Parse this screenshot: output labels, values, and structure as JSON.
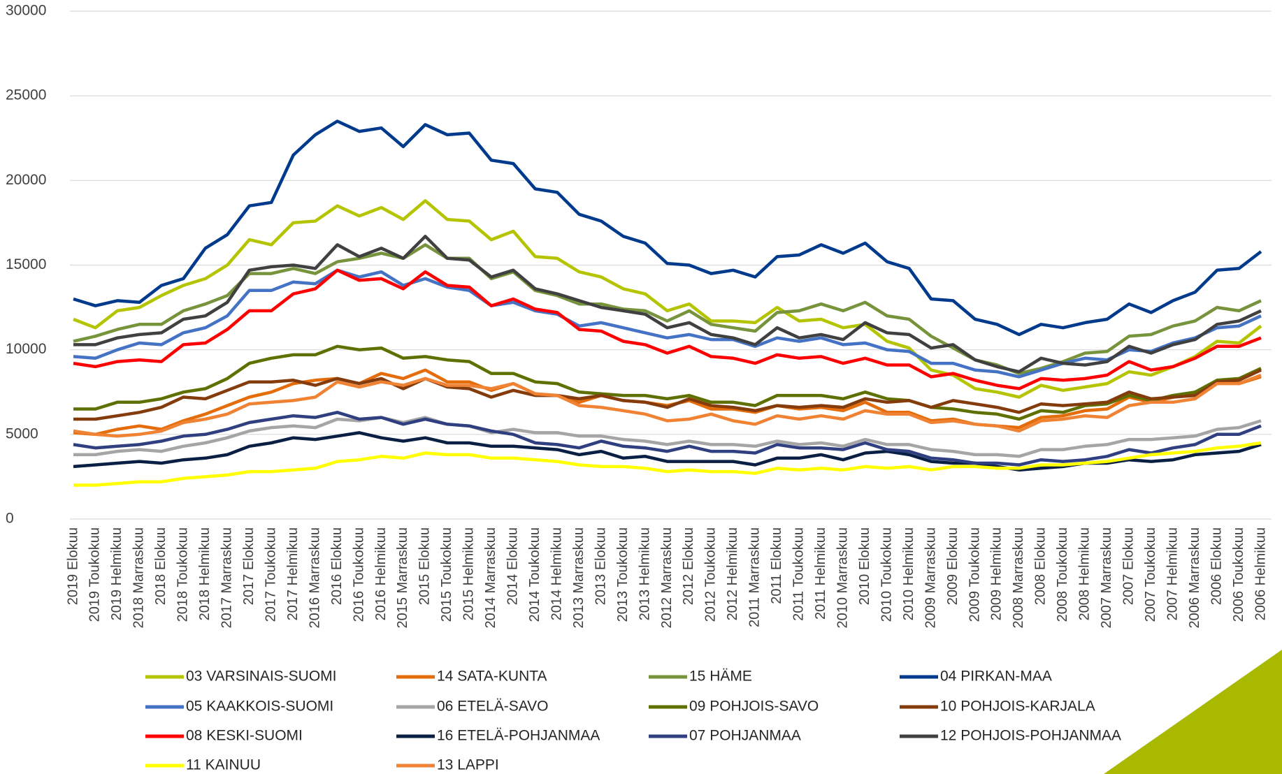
{
  "chart_data": {
    "type": "line",
    "categories": [
      "2019 Elokuu",
      "2019 Toukokuu",
      "2019 Helmikuu",
      "2018 Marraskuu",
      "2018 Elokuu",
      "2018 Toukokuu",
      "2018 Helmikuu",
      "2017 Marraskuu",
      "2017 Elokuu",
      "2017 Toukokuu",
      "2017 Helmikuu",
      "2016 Marraskuu",
      "2016 Elokuu",
      "2016 Toukokuu",
      "2016 Helmikuu",
      "2015 Marraskuu",
      "2015 Elokuu",
      "2015 Toukokuu",
      "2015 Helmikuu",
      "2014 Marraskuu",
      "2014 Elokuu",
      "2014 Toukokuu",
      "2014 Helmikuu",
      "2013 Marraskuu",
      "2013 Elokuu",
      "2013 Toukokuu",
      "2013 Helmikuu",
      "2012 Marraskuu",
      "2012 Elokuu",
      "2012 Toukokuu",
      "2012 Helmikuu",
      "2011 Marraskuu",
      "2011 Elokuu",
      "2011 Toukokuu",
      "2011 Helmikuu",
      "2010 Marraskuu",
      "2010 Elokuu",
      "2010 Toukokuu",
      "2010 Helmikuu",
      "2009 Marraskuu",
      "2009 Elokuu",
      "2009 Toukokuu",
      "2009 Helmikuu",
      "2008 Marraskuu",
      "2008 Elokuu",
      "2008 Toukokuu",
      "2008 Helmikuu",
      "2007 Marraskuu",
      "2007 Elokuu",
      "2007 Toukokuu",
      "2007 Helmikuu",
      "2006 Marraskuu",
      "2006 Elokuu",
      "2006 Toukokuu",
      "2006 Helmikuu"
    ],
    "ylim": [
      0,
      30000
    ],
    "yticks": [
      0,
      5000,
      10000,
      15000,
      20000,
      25000,
      30000
    ],
    "grid": true,
    "legend": "bottom",
    "series": [
      {
        "name": "03 VARSINAIS-SUOMI",
        "color": "#b5c400",
        "values": [
          11800,
          11300,
          12300,
          12500,
          13200,
          13800,
          14200,
          15000,
          16500,
          16200,
          17500,
          17600,
          18500,
          17900,
          18400,
          17700,
          18800,
          17700,
          17600,
          16500,
          17000,
          15500,
          15400,
          14600,
          14300,
          13600,
          13300,
          12300,
          12700,
          11700,
          11700,
          11600,
          12500,
          11700,
          11800,
          11300,
          11500,
          10500,
          10100,
          8800,
          8500,
          7700,
          7500,
          7200,
          7900,
          7600,
          7800,
          8000,
          8700,
          8500,
          9000,
          9600,
          10500,
          10400,
          11400
        ]
      },
      {
        "name": "14 SATA-KUNTA",
        "color": "#e46c0a",
        "values": [
          5100,
          5000,
          5300,
          5500,
          5300,
          5800,
          6200,
          6700,
          7200,
          7500,
          8000,
          8200,
          8300,
          8000,
          8600,
          8300,
          8800,
          8100,
          8100,
          7600,
          8000,
          7400,
          7300,
          6900,
          7300,
          7000,
          6900,
          6700,
          7000,
          6500,
          6500,
          6300,
          6700,
          6500,
          6600,
          6400,
          6900,
          6300,
          6300,
          5800,
          5900,
          5600,
          5500,
          5400,
          6000,
          6100,
          6400,
          6500,
          7200,
          6900,
          7200,
          7400,
          8200,
          8000,
          8400
        ]
      },
      {
        "name": "15 HÄME",
        "color": "#77933c",
        "values": [
          10500,
          10800,
          11200,
          11500,
          11500,
          12300,
          12700,
          13200,
          14500,
          14500,
          14800,
          14500,
          15200,
          15400,
          15700,
          15400,
          16200,
          15400,
          15400,
          14200,
          14600,
          13500,
          13200,
          12700,
          12700,
          12400,
          12300,
          11700,
          12300,
          11500,
          11300,
          11100,
          12200,
          12300,
          12700,
          12300,
          12800,
          12000,
          11800,
          10800,
          10100,
          9400,
          9100,
          8600,
          8900,
          9300,
          9800,
          9900,
          10800,
          10900,
          11400,
          11700,
          12500,
          12300,
          12900
        ]
      },
      {
        "name": "04 PIRKAN-MAA",
        "color": "#003a8c",
        "values": [
          13000,
          12600,
          12900,
          12800,
          13800,
          14200,
          16000,
          16800,
          18500,
          18700,
          21500,
          22700,
          23500,
          22900,
          23100,
          22000,
          23300,
          22700,
          22800,
          21200,
          21000,
          19500,
          19300,
          18000,
          17600,
          16700,
          16300,
          15100,
          15000,
          14500,
          14700,
          14300,
          15500,
          15600,
          16200,
          15700,
          16300,
          15200,
          14800,
          13000,
          12900,
          11800,
          11500,
          10900,
          11500,
          11300,
          11600,
          11800,
          12700,
          12200,
          12900,
          13400,
          14700,
          14800,
          15800
        ]
      },
      {
        "name": "05 KAAKKOIS-SUOMI",
        "color": "#4472c4",
        "values": [
          9600,
          9500,
          10000,
          10400,
          10300,
          11000,
          11300,
          12000,
          13500,
          13500,
          14000,
          13900,
          14700,
          14300,
          14600,
          13800,
          14200,
          13700,
          13500,
          12600,
          12800,
          12300,
          12100,
          11400,
          11600,
          11300,
          11000,
          10700,
          10900,
          10600,
          10600,
          10200,
          10700,
          10500,
          10700,
          10300,
          10400,
          10000,
          9900,
          9200,
          9200,
          8800,
          8700,
          8400,
          8800,
          9200,
          9500,
          9400,
          10000,
          9900,
          10400,
          10700,
          11300,
          11400,
          12000
        ]
      },
      {
        "name": "06 ETELÄ-SAVO",
        "color": "#a5a5a5",
        "values": [
          3800,
          3800,
          4000,
          4100,
          4000,
          4300,
          4500,
          4800,
          5200,
          5400,
          5500,
          5400,
          5900,
          5800,
          6000,
          5700,
          6000,
          5600,
          5500,
          5100,
          5300,
          5100,
          5100,
          4900,
          4900,
          4700,
          4600,
          4400,
          4600,
          4400,
          4400,
          4300,
          4600,
          4400,
          4500,
          4300,
          4700,
          4400,
          4400,
          4100,
          4000,
          3800,
          3800,
          3700,
          4100,
          4100,
          4300,
          4400,
          4700,
          4700,
          4800,
          4900,
          5300,
          5400,
          5800
        ]
      },
      {
        "name": "09 POHJOIS-SAVO",
        "color": "#5f7000",
        "values": [
          6500,
          6500,
          6900,
          6900,
          7100,
          7500,
          7700,
          8300,
          9200,
          9500,
          9700,
          9700,
          10200,
          10000,
          10100,
          9500,
          9600,
          9400,
          9300,
          8600,
          8600,
          8100,
          8000,
          7500,
          7400,
          7300,
          7300,
          7100,
          7300,
          6900,
          6900,
          6700,
          7300,
          7300,
          7300,
          7100,
          7500,
          7100,
          7000,
          6600,
          6500,
          6300,
          6200,
          5900,
          6400,
          6300,
          6700,
          6800,
          7300,
          7000,
          7300,
          7500,
          8200,
          8300,
          8900
        ]
      },
      {
        "name": "10 POHJOIS-KARJALA",
        "color": "#843c0c",
        "values": [
          5900,
          5900,
          6100,
          6300,
          6600,
          7200,
          7100,
          7600,
          8100,
          8100,
          8200,
          7900,
          8300,
          8000,
          8300,
          7700,
          8300,
          7800,
          7700,
          7200,
          7600,
          7300,
          7300,
          7100,
          7300,
          7000,
          6900,
          6600,
          7100,
          6700,
          6600,
          6400,
          6700,
          6600,
          6700,
          6600,
          7100,
          6900,
          7000,
          6600,
          7000,
          6800,
          6600,
          6300,
          6800,
          6700,
          6800,
          6900,
          7500,
          7100,
          7200,
          7300,
          8100,
          8200,
          8800
        ]
      },
      {
        "name": "08 KESKI-SUOMI",
        "color": "#ff0000",
        "values": [
          9200,
          9000,
          9300,
          9400,
          9300,
          10300,
          10400,
          11200,
          12300,
          12300,
          13300,
          13600,
          14700,
          14100,
          14200,
          13600,
          14600,
          13800,
          13700,
          12600,
          13000,
          12400,
          12200,
          11200,
          11100,
          10500,
          10300,
          9800,
          10200,
          9600,
          9500,
          9200,
          9700,
          9500,
          9600,
          9200,
          9500,
          9100,
          9100,
          8400,
          8600,
          8200,
          7900,
          7700,
          8300,
          8200,
          8300,
          8500,
          9300,
          8800,
          9000,
          9500,
          10200,
          10200,
          10700
        ]
      },
      {
        "name": "16 ETELÄ-POHJANMAA",
        "color": "#0a1f44",
        "values": [
          3100,
          3200,
          3300,
          3400,
          3300,
          3500,
          3600,
          3800,
          4300,
          4500,
          4800,
          4700,
          4900,
          5100,
          4800,
          4600,
          4800,
          4500,
          4500,
          4300,
          4300,
          4200,
          4100,
          3800,
          4000,
          3600,
          3700,
          3400,
          3400,
          3400,
          3400,
          3200,
          3600,
          3600,
          3800,
          3500,
          3900,
          4000,
          3800,
          3400,
          3300,
          3300,
          3100,
          2900,
          3000,
          3100,
          3300,
          3300,
          3500,
          3400,
          3500,
          3800,
          3900,
          4000,
          4400
        ]
      },
      {
        "name": "07 POHJANMAA",
        "color": "#2f3f80",
        "values": [
          4400,
          4200,
          4300,
          4400,
          4600,
          4900,
          5000,
          5300,
          5700,
          5900,
          6100,
          6000,
          6300,
          5900,
          6000,
          5600,
          5900,
          5600,
          5500,
          5200,
          5000,
          4500,
          4400,
          4200,
          4600,
          4300,
          4200,
          4000,
          4300,
          4000,
          4000,
          3900,
          4400,
          4200,
          4200,
          4100,
          4500,
          4100,
          4000,
          3600,
          3500,
          3300,
          3300,
          3200,
          3500,
          3400,
          3500,
          3700,
          4100,
          3900,
          4200,
          4400,
          5000,
          5000,
          5500
        ]
      },
      {
        "name": "12 POHJOIS-POHJANMAA",
        "color": "#404040",
        "values": [
          10300,
          10300,
          10700,
          10900,
          11000,
          11800,
          12000,
          12800,
          14700,
          14900,
          15000,
          14800,
          16200,
          15500,
          16000,
          15400,
          16700,
          15400,
          15300,
          14300,
          14700,
          13600,
          13300,
          12900,
          12500,
          12300,
          12100,
          11300,
          11600,
          10900,
          10700,
          10300,
          11300,
          10700,
          10900,
          10600,
          11600,
          11000,
          10900,
          10100,
          10300,
          9400,
          9000,
          8700,
          9500,
          9200,
          9100,
          9300,
          10200,
          9800,
          10300,
          10600,
          11500,
          11700,
          12300
        ]
      },
      {
        "name": "11 KAINUU",
        "color": "#ffff00",
        "values": [
          2000,
          2000,
          2100,
          2200,
          2200,
          2400,
          2500,
          2600,
          2800,
          2800,
          2900,
          3000,
          3400,
          3500,
          3700,
          3600,
          3900,
          3800,
          3800,
          3600,
          3600,
          3500,
          3400,
          3200,
          3100,
          3100,
          3000,
          2800,
          2900,
          2800,
          2800,
          2700,
          3000,
          2900,
          3000,
          2900,
          3100,
          3000,
          3100,
          2900,
          3100,
          3100,
          3000,
          3000,
          3200,
          3200,
          3300,
          3400,
          3600,
          3800,
          3900,
          4000,
          4200,
          4300,
          4500
        ]
      },
      {
        "name": "13 LAPPI",
        "color": "#f08234",
        "values": [
          5200,
          5000,
          4900,
          5000,
          5200,
          5700,
          5900,
          6200,
          6800,
          6900,
          7000,
          7200,
          8100,
          7800,
          8100,
          7900,
          8300,
          7900,
          7900,
          7700,
          8000,
          7400,
          7300,
          6700,
          6600,
          6400,
          6200,
          5800,
          5900,
          6200,
          5800,
          5600,
          6100,
          5900,
          6100,
          5900,
          6400,
          6200,
          6200,
          5700,
          5800,
          5600,
          5500,
          5200,
          5800,
          5900,
          6100,
          6000,
          6700,
          6900,
          6900,
          7100,
          8000,
          8000,
          8500
        ]
      }
    ]
  }
}
